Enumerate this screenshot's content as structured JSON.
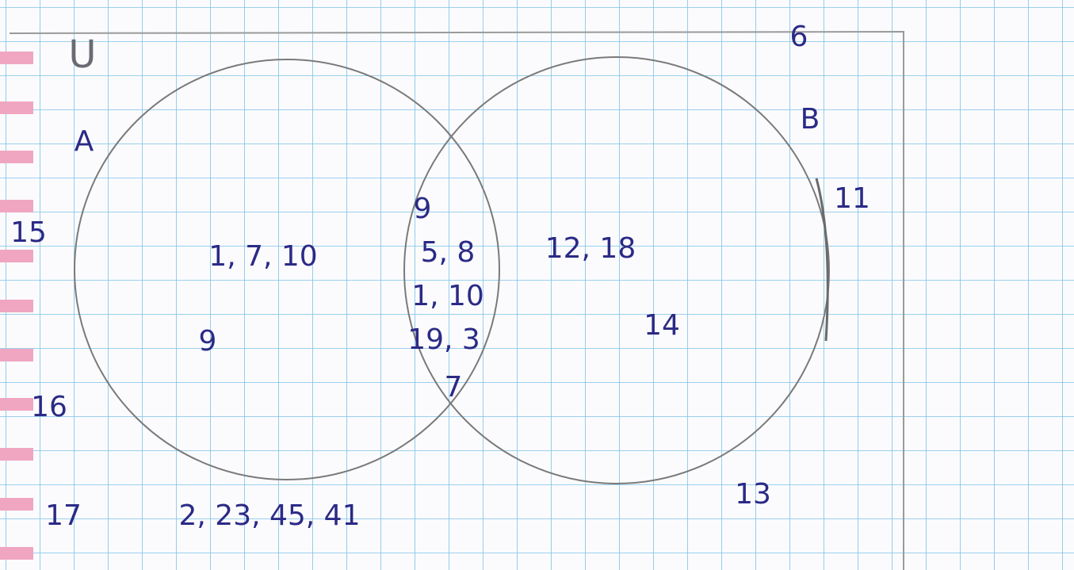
{
  "labels": {
    "universe": "U",
    "set_a": "A",
    "set_b": "B"
  },
  "outside": [
    "6",
    "15",
    "16",
    "17",
    "2, 23, 45, 41",
    "11",
    "13"
  ],
  "a_only": [
    "1, 7, 10",
    "9"
  ],
  "a_and_b": [
    "9",
    "5, 8",
    "1, 10",
    "19, 3",
    "7"
  ],
  "b_only": [
    "12, 18",
    "14"
  ]
}
